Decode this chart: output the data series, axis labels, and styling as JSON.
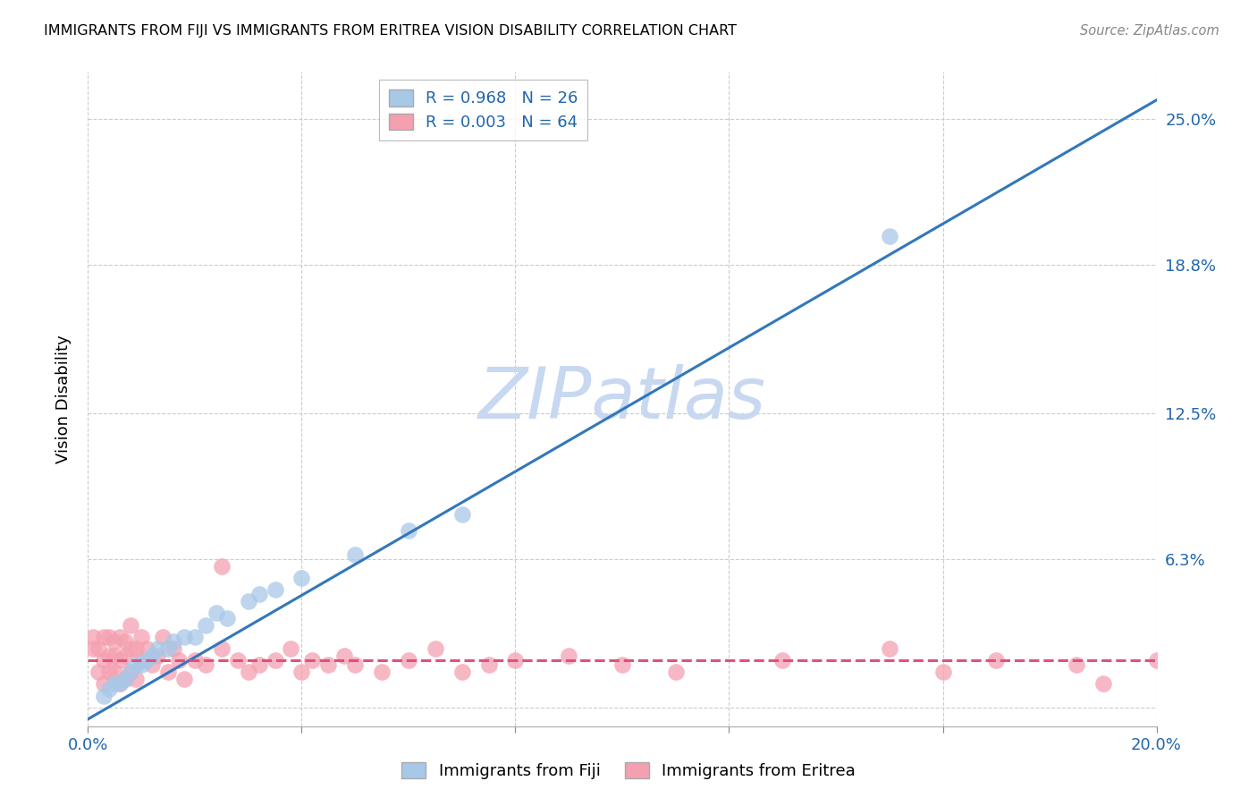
{
  "title": "IMMIGRANTS FROM FIJI VS IMMIGRANTS FROM ERITREA VISION DISABILITY CORRELATION CHART",
  "source": "Source: ZipAtlas.com",
  "ylabel": "Vision Disability",
  "xlim": [
    0.0,
    0.2
  ],
  "ylim": [
    -0.008,
    0.27
  ],
  "xticks": [
    0.0,
    0.04,
    0.08,
    0.12,
    0.16,
    0.2
  ],
  "xticklabels": [
    "0.0%",
    "",
    "",
    "",
    "",
    "20.0%"
  ],
  "ytick_positions": [
    0.0,
    0.063,
    0.125,
    0.188,
    0.25
  ],
  "yticklabels": [
    "",
    "6.3%",
    "12.5%",
    "18.8%",
    "25.0%"
  ],
  "fiji_color": "#a8c8e8",
  "eritrea_color": "#f4a0b0",
  "fiji_line_color": "#3377bb",
  "eritrea_line_color": "#e05080",
  "fiji_R": "0.968",
  "fiji_N": "26",
  "eritrea_R": "0.003",
  "eritrea_N": "64",
  "watermark": "ZIPatlas",
  "watermark_color": "#c8d8f0",
  "grid_color": "#cccccc",
  "fiji_line_x0": 0.0,
  "fiji_line_y0": -0.005,
  "fiji_line_x1": 0.2,
  "fiji_line_y1": 0.258,
  "eritrea_line_x0": 0.0,
  "eritrea_line_y0": 0.02,
  "eritrea_line_x1": 0.2,
  "eritrea_line_y1": 0.02,
  "fiji_scatter_x": [
    0.003,
    0.004,
    0.005,
    0.006,
    0.007,
    0.008,
    0.009,
    0.01,
    0.011,
    0.012,
    0.013,
    0.015,
    0.016,
    0.018,
    0.02,
    0.022,
    0.024,
    0.026,
    0.03,
    0.032,
    0.035,
    0.04,
    0.05,
    0.06,
    0.07,
    0.15
  ],
  "fiji_scatter_y": [
    0.005,
    0.008,
    0.01,
    0.01,
    0.012,
    0.015,
    0.018,
    0.018,
    0.02,
    0.022,
    0.025,
    0.025,
    0.028,
    0.03,
    0.03,
    0.035,
    0.04,
    0.038,
    0.045,
    0.048,
    0.05,
    0.055,
    0.065,
    0.075,
    0.082,
    0.2
  ],
  "eritrea_scatter_x": [
    0.001,
    0.001,
    0.002,
    0.002,
    0.003,
    0.003,
    0.003,
    0.004,
    0.004,
    0.004,
    0.005,
    0.005,
    0.005,
    0.006,
    0.006,
    0.006,
    0.007,
    0.007,
    0.007,
    0.008,
    0.008,
    0.008,
    0.009,
    0.009,
    0.01,
    0.01,
    0.011,
    0.012,
    0.013,
    0.014,
    0.015,
    0.016,
    0.017,
    0.018,
    0.02,
    0.022,
    0.025,
    0.025,
    0.028,
    0.03,
    0.032,
    0.035,
    0.038,
    0.04,
    0.042,
    0.045,
    0.048,
    0.05,
    0.055,
    0.06,
    0.065,
    0.07,
    0.075,
    0.08,
    0.09,
    0.1,
    0.11,
    0.13,
    0.15,
    0.16,
    0.17,
    0.185,
    0.19,
    0.2
  ],
  "eritrea_scatter_y": [
    0.025,
    0.03,
    0.015,
    0.025,
    0.01,
    0.02,
    0.03,
    0.015,
    0.022,
    0.03,
    0.015,
    0.022,
    0.028,
    0.01,
    0.02,
    0.03,
    0.012,
    0.022,
    0.028,
    0.015,
    0.025,
    0.035,
    0.012,
    0.025,
    0.02,
    0.03,
    0.025,
    0.018,
    0.022,
    0.03,
    0.015,
    0.025,
    0.02,
    0.012,
    0.02,
    0.018,
    0.06,
    0.025,
    0.02,
    0.015,
    0.018,
    0.02,
    0.025,
    0.015,
    0.02,
    0.018,
    0.022,
    0.018,
    0.015,
    0.02,
    0.025,
    0.015,
    0.018,
    0.02,
    0.022,
    0.018,
    0.015,
    0.02,
    0.025,
    0.015,
    0.02,
    0.018,
    0.01,
    0.02
  ],
  "legend_label_fiji": "Immigrants from Fiji",
  "legend_label_eritrea": "Immigrants from Eritrea"
}
